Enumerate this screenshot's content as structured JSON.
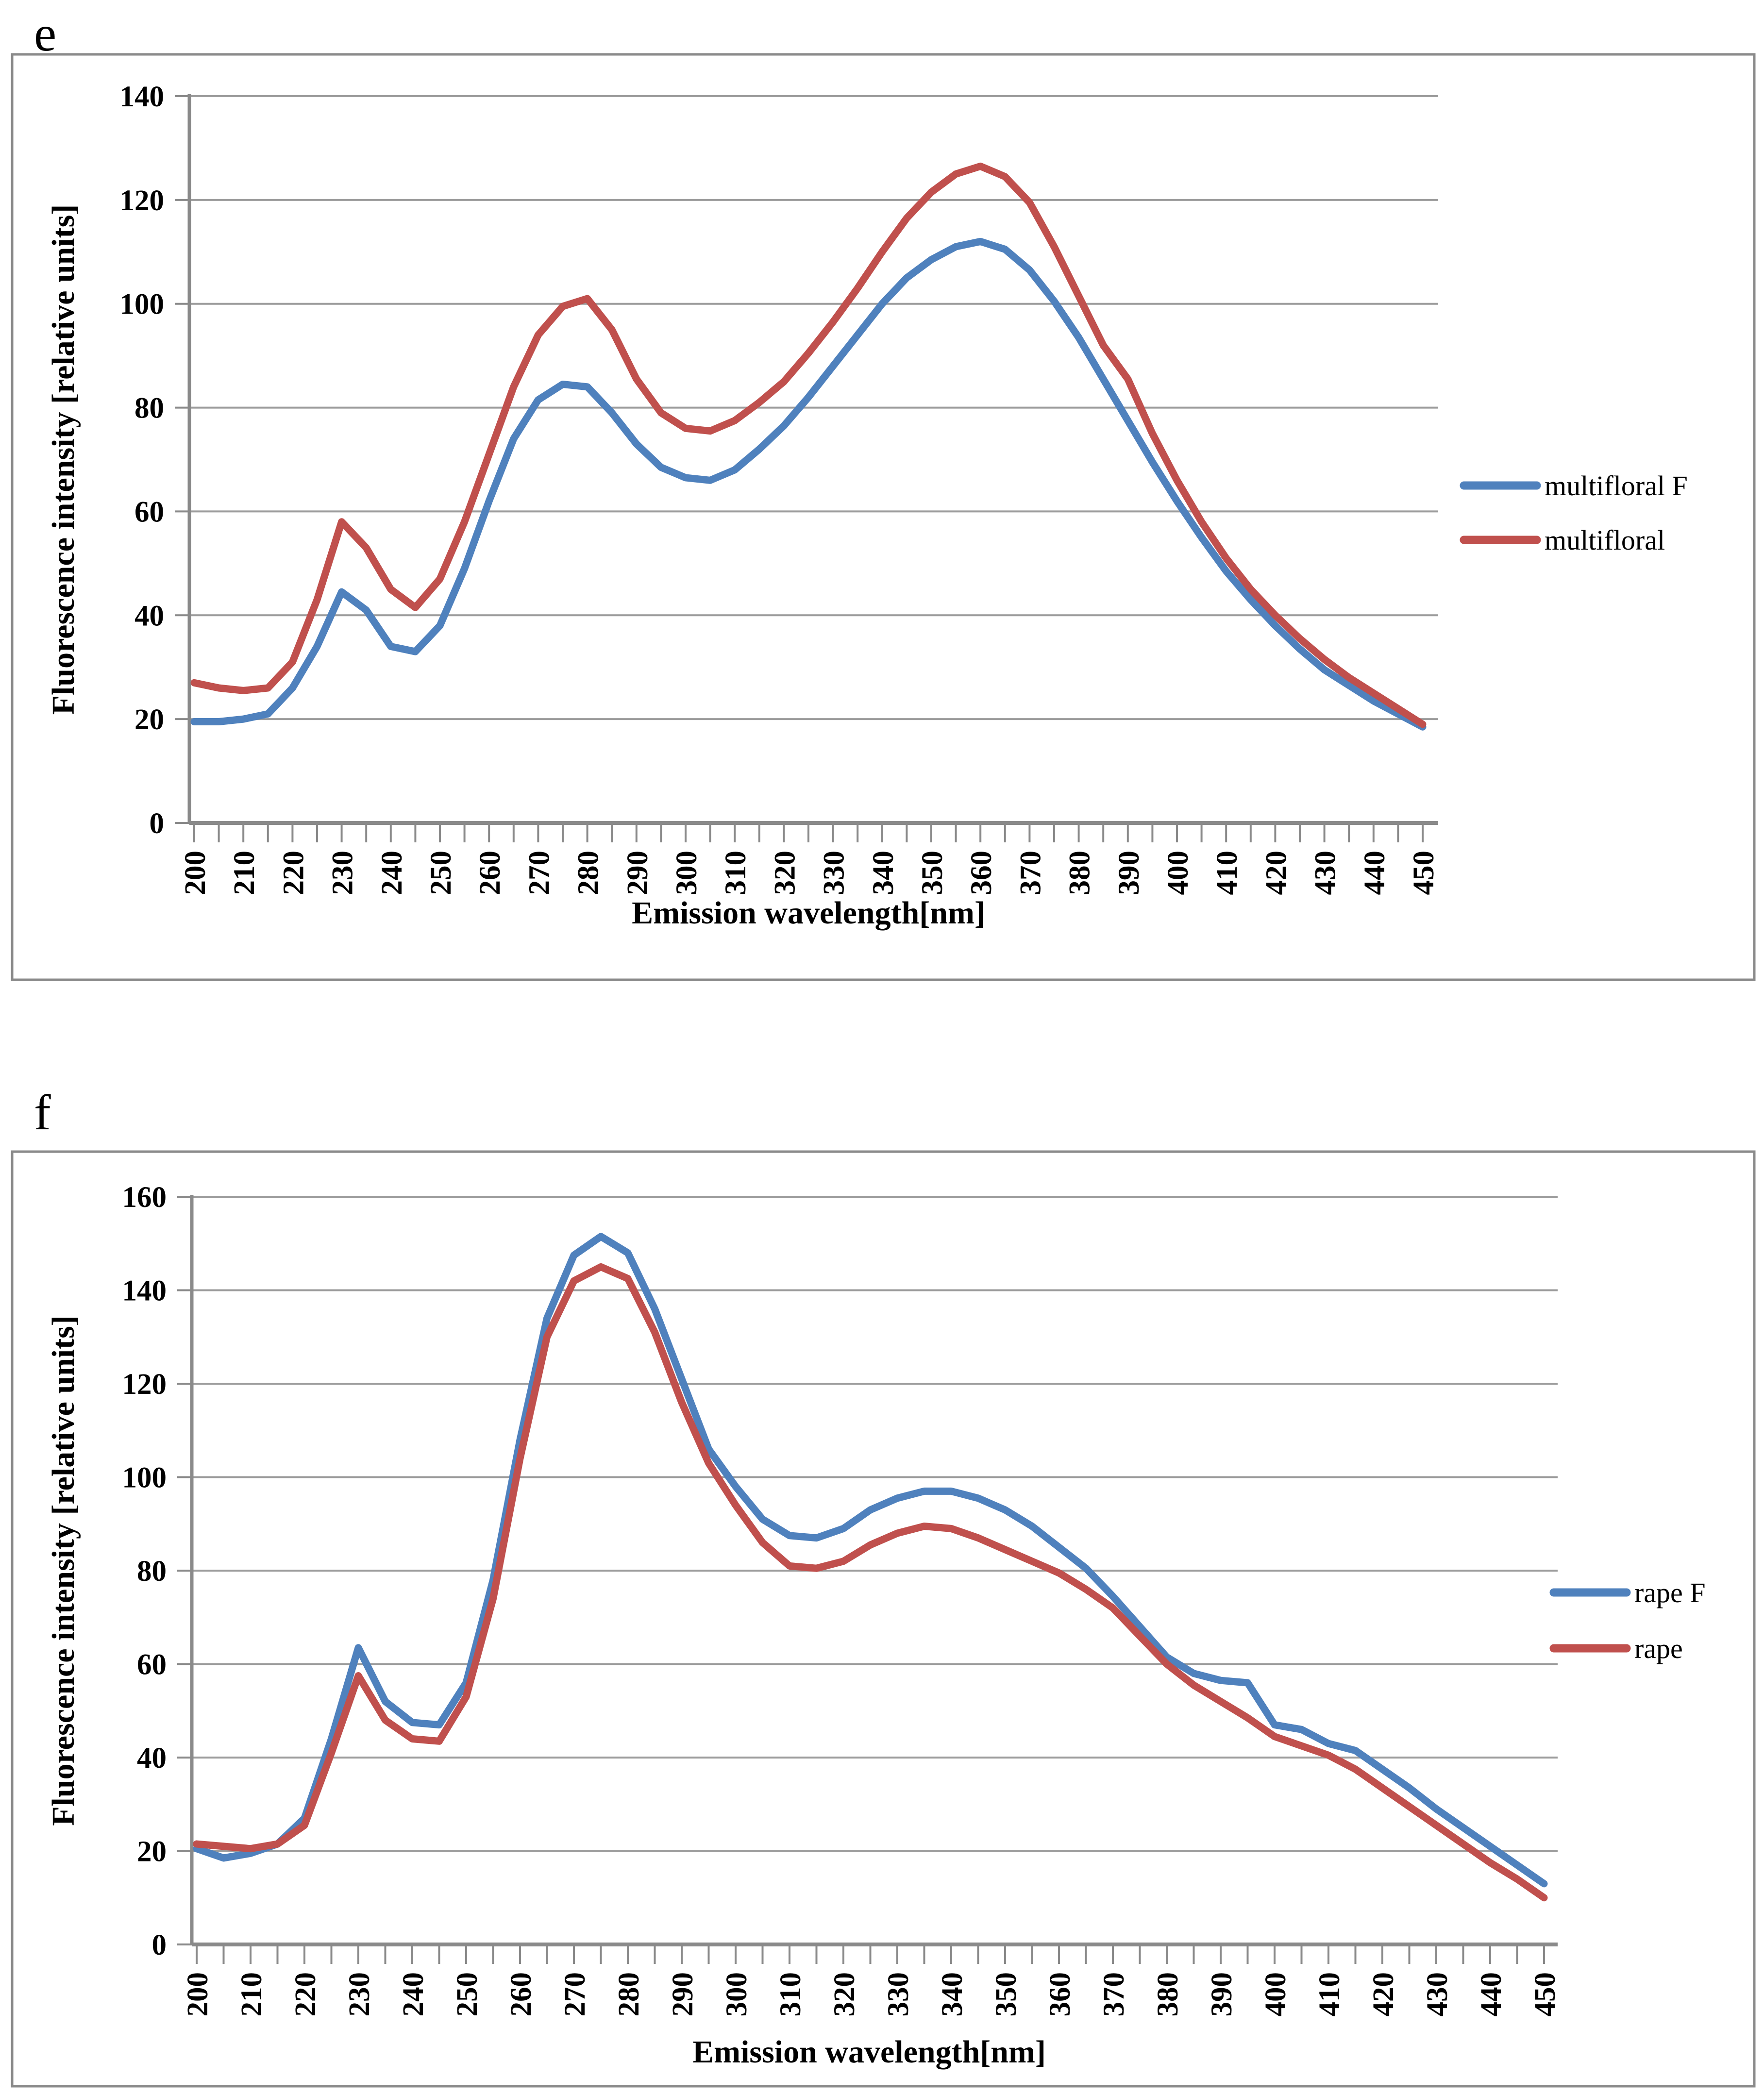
{
  "panels": [
    {
      "label": "e"
    },
    {
      "label": "f"
    }
  ],
  "styles": {
    "series_blue": "#4F81BD",
    "series_red": "#C0504D",
    "gridline_color": "#9C9C9C",
    "axis_color": "#8A8A8A",
    "frame_color": "#8A8A8A",
    "text_color": "#000000"
  },
  "chart_data": [
    {
      "type": "line",
      "panel": "e",
      "title": "",
      "xlabel": "Emission wavelength[nm]",
      "ylabel": "Fluorescence intensity [relative units]",
      "x_range": [
        200,
        450
      ],
      "x_tick_step": 10,
      "x_minor_tick_step": 5,
      "y_range": [
        0,
        140
      ],
      "y_tick_step": 20,
      "grid": "horizontal",
      "legend_position": "right",
      "x": [
        200,
        205,
        210,
        215,
        220,
        225,
        230,
        235,
        240,
        245,
        250,
        255,
        260,
        265,
        270,
        275,
        280,
        285,
        290,
        295,
        300,
        305,
        310,
        315,
        320,
        325,
        330,
        335,
        340,
        345,
        350,
        355,
        360,
        365,
        370,
        375,
        380,
        385,
        390,
        395,
        400,
        405,
        410,
        415,
        420,
        425,
        430,
        435,
        440,
        445,
        450
      ],
      "series": [
        {
          "name": "multifloral F",
          "color": "#4F81BD",
          "values": [
            19.5,
            19.5,
            20,
            21,
            26,
            34,
            44.5,
            41,
            34,
            33,
            38,
            49,
            62,
            74,
            81.5,
            84.5,
            84,
            79,
            73,
            68.5,
            66.5,
            66,
            68,
            72,
            76.5,
            82,
            88,
            94,
            100,
            105,
            108.5,
            111,
            112,
            110.5,
            106.5,
            100.5,
            93.5,
            85.5,
            77.5,
            69.5,
            62,
            55,
            48.5,
            43,
            38,
            33.5,
            29.5,
            26.5,
            23.5,
            21,
            18.5
          ]
        },
        {
          "name": "multifloral",
          "color": "#C0504D",
          "values": [
            27,
            26,
            25.5,
            26,
            31,
            43,
            58,
            53,
            45,
            41.5,
            47,
            58,
            71,
            84,
            94,
            99.5,
            101,
            95,
            85.5,
            79,
            76,
            75.5,
            77.5,
            81,
            85,
            90.5,
            96.5,
            103,
            110,
            116.5,
            121.5,
            125,
            126.5,
            124.5,
            119.5,
            111,
            101.5,
            92,
            85.5,
            75,
            66,
            58,
            51,
            45,
            40,
            35.5,
            31.5,
            28,
            25,
            22,
            19
          ]
        }
      ]
    },
    {
      "type": "line",
      "panel": "f",
      "title": "",
      "xlabel": "Emission wavelength[nm]",
      "ylabel": "Fluorescence intensity [relative units]",
      "x_range": [
        200,
        450
      ],
      "x_tick_step": 10,
      "x_minor_tick_step": 5,
      "y_range": [
        0,
        160
      ],
      "y_tick_step": 20,
      "grid": "horizontal",
      "legend_position": "right",
      "x": [
        200,
        205,
        210,
        215,
        220,
        225,
        230,
        235,
        240,
        245,
        250,
        255,
        260,
        265,
        270,
        275,
        280,
        285,
        290,
        295,
        300,
        305,
        310,
        315,
        320,
        325,
        330,
        335,
        340,
        345,
        350,
        355,
        360,
        365,
        370,
        375,
        380,
        385,
        390,
        395,
        400,
        405,
        410,
        415,
        420,
        425,
        430,
        435,
        440,
        445,
        450
      ],
      "series": [
        {
          "name": "rape F",
          "color": "#4F81BD",
          "values": [
            20.5,
            18.5,
            19.5,
            21.5,
            27,
            44,
            63.5,
            52,
            47.5,
            47,
            56,
            78,
            108,
            134,
            147.5,
            151.5,
            148,
            136,
            121,
            106,
            98,
            91,
            87.5,
            87,
            89,
            93,
            95.5,
            97,
            97,
            95.5,
            93,
            89.5,
            85,
            80.5,
            74.5,
            68,
            61.5,
            58,
            56.5,
            56,
            47,
            46,
            43,
            41.5,
            37.5,
            33.5,
            29,
            25,
            21,
            17,
            13
          ]
        },
        {
          "name": "rape",
          "color": "#C0504D",
          "values": [
            21.5,
            21,
            20.5,
            21.5,
            25.5,
            41,
            57.5,
            48,
            44,
            43.5,
            53,
            74,
            104,
            130,
            142,
            145,
            142.5,
            131,
            116,
            103,
            94,
            86,
            81,
            80.5,
            82,
            85.5,
            88,
            89.5,
            89,
            87,
            84.5,
            82,
            79.5,
            76,
            72,
            66,
            60,
            55.5,
            52,
            48.5,
            44.5,
            42.5,
            40.5,
            37.5,
            33.5,
            29.5,
            25.5,
            21.5,
            17.5,
            14,
            10
          ]
        }
      ]
    }
  ]
}
